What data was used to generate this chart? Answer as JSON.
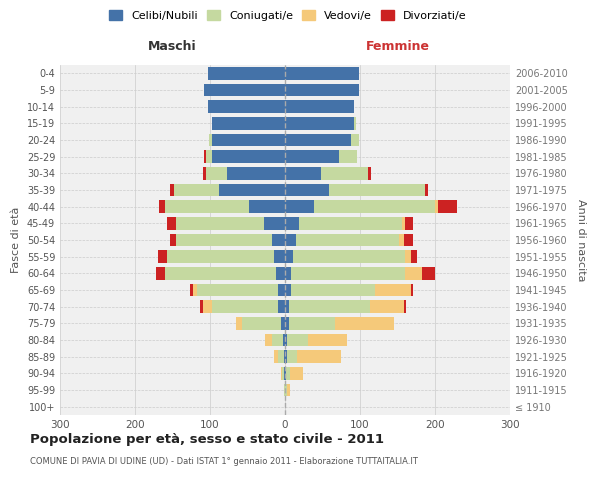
{
  "age_groups": [
    "100+",
    "95-99",
    "90-94",
    "85-89",
    "80-84",
    "75-79",
    "70-74",
    "65-69",
    "60-64",
    "55-59",
    "50-54",
    "45-49",
    "40-44",
    "35-39",
    "30-34",
    "25-29",
    "20-24",
    "15-19",
    "10-14",
    "5-9",
    "0-4"
  ],
  "birth_years": [
    "≤ 1910",
    "1911-1915",
    "1916-1920",
    "1921-1925",
    "1926-1930",
    "1931-1935",
    "1936-1940",
    "1941-1945",
    "1946-1950",
    "1951-1955",
    "1956-1960",
    "1961-1965",
    "1966-1970",
    "1971-1975",
    "1976-1980",
    "1981-1985",
    "1986-1990",
    "1991-1995",
    "1996-2000",
    "2001-2005",
    "2006-2010"
  ],
  "maschi": {
    "celibi": [
      0,
      0,
      1,
      2,
      3,
      5,
      10,
      10,
      12,
      15,
      18,
      28,
      48,
      88,
      78,
      98,
      98,
      98,
      103,
      108,
      103
    ],
    "coniugati": [
      0,
      1,
      3,
      8,
      14,
      52,
      88,
      108,
      148,
      142,
      128,
      118,
      112,
      60,
      28,
      8,
      3,
      0,
      0,
      0,
      0
    ],
    "vedovi": [
      0,
      0,
      2,
      5,
      10,
      8,
      12,
      5,
      0,
      0,
      0,
      0,
      0,
      0,
      0,
      0,
      0,
      0,
      0,
      0,
      0
    ],
    "divorziati": [
      0,
      0,
      0,
      0,
      0,
      0,
      3,
      4,
      12,
      12,
      8,
      12,
      8,
      5,
      3,
      2,
      0,
      0,
      0,
      0,
      0
    ]
  },
  "femmine": {
    "nubili": [
      0,
      0,
      1,
      2,
      3,
      5,
      5,
      8,
      8,
      10,
      14,
      18,
      38,
      58,
      48,
      72,
      88,
      92,
      92,
      98,
      98
    ],
    "coniugate": [
      0,
      2,
      5,
      14,
      28,
      62,
      108,
      112,
      152,
      150,
      138,
      138,
      162,
      128,
      62,
      24,
      10,
      3,
      0,
      0,
      0
    ],
    "vedove": [
      0,
      5,
      18,
      58,
      52,
      78,
      45,
      48,
      22,
      8,
      6,
      4,
      4,
      0,
      0,
      0,
      0,
      0,
      0,
      0,
      0
    ],
    "divorziate": [
      0,
      0,
      0,
      0,
      0,
      0,
      3,
      3,
      18,
      8,
      12,
      10,
      25,
      5,
      4,
      0,
      0,
      0,
      0,
      0,
      0
    ]
  },
  "colors": {
    "celibi": "#4472a8",
    "coniugati": "#c5d9a0",
    "vedovi": "#f5c97a",
    "divorziati": "#cc2222"
  },
  "xlim": 300,
  "title": "Popolazione per età, sesso e stato civile - 2011",
  "subtitle": "COMUNE DI PAVIA DI UDINE (UD) - Dati ISTAT 1° gennaio 2011 - Elaborazione TUTTAITALIA.IT",
  "ylabel_left": "Fasce di età",
  "ylabel_right": "Anni di nascita",
  "label_maschi": "Maschi",
  "label_femmine": "Femmine",
  "legend_labels": [
    "Celibi/Nubili",
    "Coniugati/e",
    "Vedovi/e",
    "Divorziati/e"
  ],
  "bg_color": "#ffffff",
  "plot_bg": "#f0f0f0",
  "grid_color": "#cccccc"
}
